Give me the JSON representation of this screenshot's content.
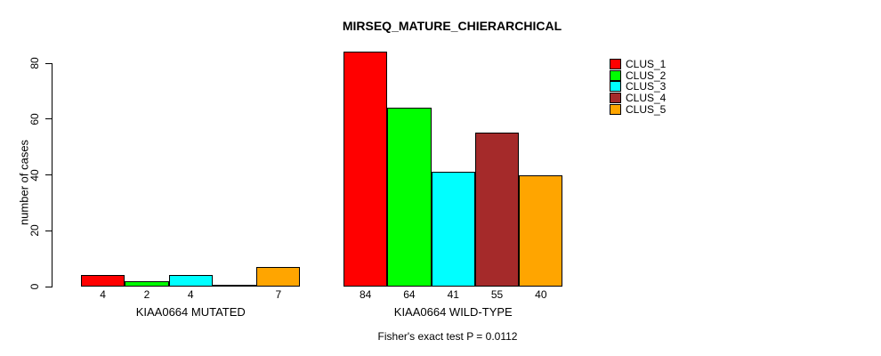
{
  "chart_data": {
    "type": "bar",
    "title": "MIRSEQ_MATURE_CHIERARCHICAL",
    "ylabel": "number of cases",
    "xlabel": "",
    "ylim": [
      0,
      80
    ],
    "yticks": [
      0,
      20,
      40,
      60,
      80
    ],
    "grid": false,
    "legend_position": "top-right",
    "series": [
      {
        "name": "CLUS_1",
        "color": "#ff0000"
      },
      {
        "name": "CLUS_2",
        "color": "#00ff00"
      },
      {
        "name": "CLUS_3",
        "color": "#00ffff"
      },
      {
        "name": "CLUS_4",
        "color": "#a52a2a"
      },
      {
        "name": "CLUS_5",
        "color": "#ffa500"
      }
    ],
    "groups": [
      {
        "label": "KIAA0664 MUTATED",
        "values": [
          4,
          2,
          4,
          0,
          7
        ],
        "value_labels": [
          "4",
          "2",
          "4",
          "",
          "7"
        ]
      },
      {
        "label": "KIAA0664 WILD-TYPE",
        "values": [
          84,
          64,
          41,
          55,
          40
        ],
        "value_labels": [
          "84",
          "64",
          "41",
          "55",
          "40"
        ]
      }
    ],
    "annotation": "Fisher's exact test P = 0.0112"
  }
}
